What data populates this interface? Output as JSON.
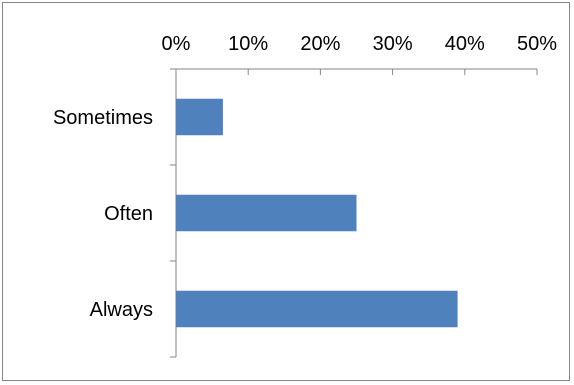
{
  "chart_data": {
    "type": "bar",
    "orientation": "horizontal",
    "categories": [
      "Sometimes",
      "Often",
      "Always"
    ],
    "values": [
      0.065,
      0.25,
      0.39
    ],
    "x_ticks": [
      "0%",
      "10%",
      "20%",
      "30%",
      "40%",
      "50%"
    ],
    "xlim": [
      0,
      0.5
    ],
    "x_axis_position": "top",
    "grid": false,
    "legend": "none",
    "bar_color": "#4F81BD",
    "title": "",
    "xlabel": "",
    "ylabel": ""
  }
}
